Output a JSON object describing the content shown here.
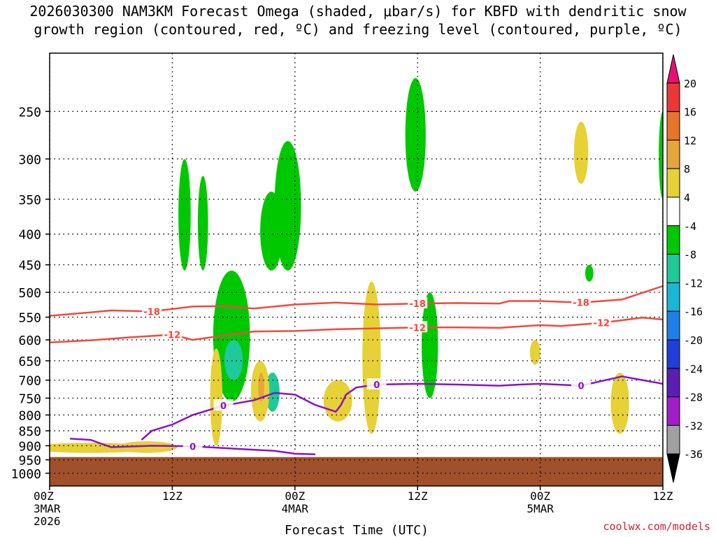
{
  "title_line1": "2026030300 NAM3KM Forecast Omega (shaded, μbar/s) for KBFD with dendritic snow",
  "title_line2": "growth region (contoured, red, ºC) and freezing level (contoured, purple, ºC)",
  "watermark": "coolwx.com/models",
  "chart_data": {
    "type": "time-height cross section",
    "xlabel": "Forecast Time (UTC)",
    "x_ticks": [
      {
        "hour": 0,
        "lines": [
          "00Z",
          "3MAR",
          "2026"
        ]
      },
      {
        "hour": 12,
        "lines": [
          "12Z"
        ]
      },
      {
        "hour": 24,
        "lines": [
          "00Z",
          "4MAR"
        ]
      },
      {
        "hour": 36,
        "lines": [
          "12Z"
        ]
      },
      {
        "hour": 48,
        "lines": [
          "00Z",
          "5MAR"
        ]
      },
      {
        "hour": 60,
        "lines": [
          "12Z"
        ]
      }
    ],
    "xlim": [
      0,
      60
    ],
    "ylabel": "",
    "y_ticks": [
      250,
      300,
      350,
      400,
      450,
      500,
      550,
      600,
      650,
      700,
      750,
      800,
      850,
      900,
      950,
      1000
    ],
    "ylim": [
      1050,
      200
    ],
    "ground_pressure": 940,
    "colorbar": {
      "labels": [
        20,
        16,
        12,
        8,
        4,
        -4,
        -8,
        -12,
        -16,
        -20,
        -24,
        -28,
        -32,
        -36
      ],
      "colors": [
        "#e8106e",
        "#e83838",
        "#e8742a",
        "#e4a63a",
        "#e6d136",
        "#ffffff",
        "#00c800",
        "#1ec99a",
        "#1ab6d6",
        "#1f7fe8",
        "#1f3fd8",
        "#5a1eb2",
        "#a01ec8",
        "#a0a0a0",
        "#000000"
      ]
    },
    "contours": [
      {
        "label": "-18",
        "color": "#ef4a3f",
        "points": [
          [
            0,
            547
          ],
          [
            4,
            540
          ],
          [
            6,
            536
          ],
          [
            10,
            538
          ],
          [
            14,
            528
          ],
          [
            17,
            527
          ],
          [
            20,
            532
          ],
          [
            24,
            524
          ],
          [
            28,
            520
          ],
          [
            32,
            524
          ],
          [
            36,
            522
          ],
          [
            40,
            521
          ],
          [
            44,
            522
          ],
          [
            45,
            517
          ],
          [
            48,
            517
          ],
          [
            52,
            520
          ],
          [
            56,
            514
          ],
          [
            60,
            488
          ]
        ]
      },
      {
        "label": "-12",
        "color": "#ef4a3f",
        "points": [
          [
            0,
            606
          ],
          [
            4,
            601
          ],
          [
            8,
            594
          ],
          [
            12,
            588
          ],
          [
            14,
            600
          ],
          [
            17,
            590
          ],
          [
            20,
            581
          ],
          [
            24,
            580
          ],
          [
            28,
            576
          ],
          [
            32,
            574
          ],
          [
            36,
            572
          ],
          [
            40,
            572
          ],
          [
            44,
            573
          ],
          [
            48,
            567
          ],
          [
            50,
            569
          ],
          [
            54,
            562
          ],
          [
            58,
            551
          ],
          [
            60,
            555
          ]
        ]
      },
      {
        "label": "0",
        "color": "#8b12c8",
        "points": [
          [
            9,
            880
          ],
          [
            10,
            850
          ],
          [
            12,
            830
          ],
          [
            14,
            800
          ],
          [
            17,
            772
          ],
          [
            20,
            756
          ],
          [
            22,
            735
          ],
          [
            24,
            740
          ],
          [
            26,
            770
          ],
          [
            28,
            790
          ],
          [
            28.5,
            770
          ],
          [
            29,
            740
          ],
          [
            30,
            720
          ],
          [
            32,
            712
          ],
          [
            36,
            710
          ],
          [
            40,
            712
          ],
          [
            44,
            715
          ],
          [
            46,
            712
          ],
          [
            48,
            710
          ],
          [
            52,
            715
          ],
          [
            56,
            690
          ],
          [
            58,
            700
          ],
          [
            60,
            710
          ]
        ]
      },
      {
        "label": "0",
        "color": "#8b12c8",
        "points": [
          [
            2,
            876
          ],
          [
            4,
            880
          ],
          [
            6,
            905
          ],
          [
            10,
            900
          ],
          [
            14,
            902
          ],
          [
            18,
            910
          ],
          [
            22,
            918
          ],
          [
            24,
            928
          ],
          [
            26,
            930
          ]
        ]
      }
    ],
    "shaded_blobs": [
      {
        "value": -6,
        "hour": 13.2,
        "p_top": 300,
        "p_bot": 460,
        "w": 0.6
      },
      {
        "value": -6,
        "hour": 15.0,
        "p_top": 320,
        "p_bot": 460,
        "w": 0.5
      },
      {
        "value": -6,
        "hour": 21.7,
        "p_top": 340,
        "p_bot": 460,
        "w": 1.1
      },
      {
        "value": -6,
        "hour": 23.3,
        "p_top": 280,
        "p_bot": 460,
        "w": 1.3
      },
      {
        "value": -6,
        "hour": 17.8,
        "p_top": 460,
        "p_bot": 760,
        "w": 1.8
      },
      {
        "value": -10,
        "hour": 18.0,
        "p_top": 600,
        "p_bot": 700,
        "w": 0.9
      },
      {
        "value": -10,
        "hour": 21.8,
        "p_top": 680,
        "p_bot": 790,
        "w": 0.7
      },
      {
        "value": -6,
        "hour": 35.8,
        "p_top": 220,
        "p_bot": 340,
        "w": 1.0
      },
      {
        "value": -6,
        "hour": 37.2,
        "p_top": 500,
        "p_bot": 750,
        "w": 0.8
      },
      {
        "value": -6,
        "hour": 52.8,
        "p_top": 450,
        "p_bot": 480,
        "w": 0.4
      },
      {
        "value": -6,
        "hour": 60.0,
        "p_top": 250,
        "p_bot": 350,
        "w": 0.4
      },
      {
        "value": 6,
        "hour": 16.3,
        "p_top": 620,
        "p_bot": 900,
        "w": 0.6
      },
      {
        "value": 6,
        "hour": 20.6,
        "p_top": 650,
        "p_bot": 820,
        "w": 0.9
      },
      {
        "value": 10,
        "hour": 20.7,
        "p_top": 680,
        "p_bot": 760,
        "w": 0.3
      },
      {
        "value": 6,
        "hour": 31.5,
        "p_top": 480,
        "p_bot": 860,
        "w": 0.9
      },
      {
        "value": 6,
        "hour": 28.2,
        "p_top": 700,
        "p_bot": 820,
        "w": 1.4
      },
      {
        "value": 6,
        "hour": 52.0,
        "p_top": 260,
        "p_bot": 330,
        "w": 0.7
      },
      {
        "value": 6,
        "hour": 55.8,
        "p_top": 680,
        "p_bot": 860,
        "w": 0.9
      },
      {
        "value": 6,
        "hour": 4.0,
        "p_top": 890,
        "p_bot": 925,
        "w": 6.0
      },
      {
        "value": 6,
        "hour": 9.5,
        "p_top": 885,
        "p_bot": 925,
        "w": 3.0
      },
      {
        "value": 6,
        "hour": 47.5,
        "p_top": 600,
        "p_bot": 660,
        "w": 0.5
      }
    ]
  }
}
